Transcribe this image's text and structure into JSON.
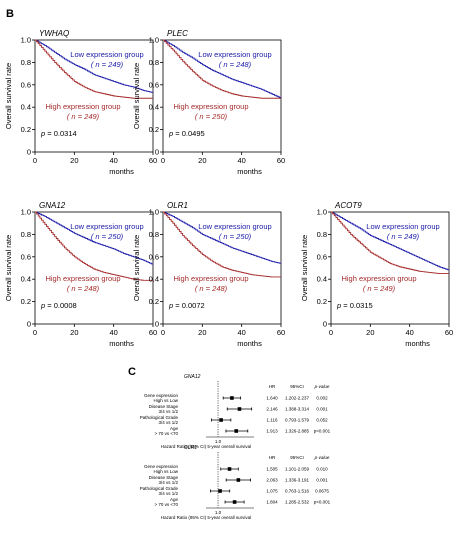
{
  "panels": {
    "b": "B",
    "c": "C"
  },
  "km_common": {
    "ylabel": "Overall survival rate",
    "xlabel": "months",
    "low_label": "Low expression group",
    "high_label": "High expression group",
    "xticks": [
      0,
      20,
      40,
      60
    ],
    "yticks": [
      "0",
      "0.2",
      "0.4",
      "0.6",
      "0.8",
      "1.0"
    ],
    "p_prefix": "p",
    "low_color": "#1a1aa8",
    "high_color": "#a52a2a"
  },
  "chart_data": [
    {
      "type": "line",
      "title": "YWHAQ",
      "xlabel": "months",
      "ylabel": "Overall survival rate",
      "xlim": [
        0,
        60
      ],
      "ylim": [
        0,
        1.0
      ],
      "p_value": "= 0.0314",
      "series": [
        {
          "name": "Low expression group",
          "n": "( n = 249)",
          "x": [
            0,
            5,
            10,
            15,
            20,
            25,
            30,
            35,
            40,
            45,
            50,
            55,
            60
          ],
          "y": [
            1.0,
            0.95,
            0.89,
            0.83,
            0.78,
            0.74,
            0.69,
            0.66,
            0.63,
            0.6,
            0.58,
            0.55,
            0.53
          ]
        },
        {
          "name": "High expression group",
          "n": "( n = 249)",
          "x": [
            0,
            5,
            10,
            15,
            20,
            25,
            30,
            35,
            40,
            45,
            50,
            55,
            60
          ],
          "y": [
            1.0,
            0.9,
            0.8,
            0.71,
            0.63,
            0.58,
            0.54,
            0.52,
            0.5,
            0.49,
            0.48,
            0.48,
            0.48
          ]
        }
      ]
    },
    {
      "type": "line",
      "title": "PLEC",
      "xlabel": "months",
      "ylabel": "Overall survival rate",
      "xlim": [
        0,
        60
      ],
      "ylim": [
        0,
        1.0
      ],
      "p_value": "= 0.0495",
      "series": [
        {
          "name": "Low expression group",
          "n": "( n = 248)",
          "x": [
            0,
            5,
            10,
            15,
            20,
            25,
            30,
            35,
            40,
            45,
            50,
            55,
            60
          ],
          "y": [
            1.0,
            0.95,
            0.89,
            0.84,
            0.78,
            0.73,
            0.69,
            0.65,
            0.62,
            0.59,
            0.56,
            0.52,
            0.48
          ]
        },
        {
          "name": "High expression group",
          "n": "( n = 250)",
          "x": [
            0,
            5,
            10,
            15,
            20,
            25,
            30,
            35,
            40,
            45,
            50,
            55,
            60
          ],
          "y": [
            1.0,
            0.91,
            0.81,
            0.72,
            0.64,
            0.59,
            0.55,
            0.52,
            0.5,
            0.49,
            0.48,
            0.48,
            0.48
          ]
        }
      ]
    },
    {
      "type": "line",
      "title": "GNA12",
      "xlabel": "months",
      "ylabel": "Overall survival rate",
      "xlim": [
        0,
        60
      ],
      "ylim": [
        0,
        1.0
      ],
      "p_value": "= 0.0008",
      "series": [
        {
          "name": "Low expression group",
          "n": "( n = 250)",
          "x": [
            0,
            5,
            10,
            15,
            20,
            25,
            30,
            35,
            40,
            45,
            50,
            55,
            60
          ],
          "y": [
            1.0,
            0.96,
            0.91,
            0.86,
            0.81,
            0.77,
            0.73,
            0.7,
            0.67,
            0.63,
            0.6,
            0.57,
            0.53
          ]
        },
        {
          "name": "High expression group",
          "n": "( n = 248)",
          "x": [
            0,
            5,
            10,
            15,
            20,
            25,
            30,
            35,
            40,
            45,
            50,
            55,
            60
          ],
          "y": [
            1.0,
            0.89,
            0.78,
            0.68,
            0.6,
            0.54,
            0.49,
            0.46,
            0.44,
            0.42,
            0.4,
            0.39,
            0.39
          ]
        }
      ]
    },
    {
      "type": "line",
      "title": "OLR1",
      "xlabel": "months",
      "ylabel": "Overall survival rate",
      "xlim": [
        0,
        60
      ],
      "ylim": [
        0,
        1.0
      ],
      "p_value": "= 0.0072",
      "series": [
        {
          "name": "Low expression group",
          "n": "( n = 250)",
          "x": [
            0,
            5,
            10,
            15,
            20,
            25,
            30,
            35,
            40,
            45,
            50,
            55,
            60
          ],
          "y": [
            1.0,
            0.96,
            0.91,
            0.86,
            0.8,
            0.76,
            0.72,
            0.68,
            0.65,
            0.62,
            0.59,
            0.56,
            0.54
          ]
        },
        {
          "name": "High expression group",
          "n": "( n = 248)",
          "x": [
            0,
            5,
            10,
            15,
            20,
            25,
            30,
            35,
            40,
            45,
            50,
            55,
            60
          ],
          "y": [
            1.0,
            0.9,
            0.79,
            0.7,
            0.62,
            0.56,
            0.51,
            0.48,
            0.46,
            0.44,
            0.43,
            0.42,
            0.42
          ]
        }
      ]
    },
    {
      "type": "line",
      "title": "ACOT9",
      "xlabel": "months",
      "ylabel": "Overall survival rate",
      "xlim": [
        0,
        60
      ],
      "ylim": [
        0,
        1.0
      ],
      "p_value": "= 0.0315",
      "series": [
        {
          "name": "Low expression group",
          "n": "( n = 249)",
          "x": [
            0,
            5,
            10,
            15,
            20,
            25,
            30,
            35,
            40,
            45,
            50,
            55,
            60
          ],
          "y": [
            1.0,
            0.95,
            0.9,
            0.85,
            0.79,
            0.75,
            0.71,
            0.67,
            0.63,
            0.59,
            0.55,
            0.51,
            0.48
          ]
        },
        {
          "name": "High expression group",
          "n": "( n = 249)",
          "x": [
            0,
            5,
            10,
            15,
            20,
            25,
            30,
            35,
            40,
            45,
            50,
            55,
            60
          ],
          "y": [
            1.0,
            0.9,
            0.8,
            0.72,
            0.64,
            0.59,
            0.54,
            0.51,
            0.49,
            0.47,
            0.46,
            0.45,
            0.45
          ]
        }
      ]
    },
    {
      "type": "forest",
      "title": "GNA12",
      "xlabel": "Hazard Ratio (95% CI) 5-year overall survival",
      "ref_label": "1.0",
      "columns": [
        "HR",
        "95%CI",
        "p-value"
      ],
      "rows": [
        {
          "label1": "Gene expression",
          "label2": "High vs Low",
          "hr": 1.64,
          "hr_text": "1.640",
          "lo": 1.202,
          "hi": 2.237,
          "ci_text": "1.202-2.237",
          "p": "0.002"
        },
        {
          "label1": "Disease Stage",
          "label2": "3/4 vs 1/2",
          "hr": 2.146,
          "hr_text": "2.146",
          "lo": 1.388,
          "hi": 3.314,
          "ci_text": "1.388-3.314",
          "p": "0.001"
        },
        {
          "label1": "Pathological Grade",
          "label2": "3/4 vs 1/2",
          "hr": 1.116,
          "hr_text": "1.116",
          "lo": 0.793,
          "hi": 1.579,
          "ci_text": "0.793-1.579",
          "p": "0.052"
        },
        {
          "label1": "Age",
          "label2": "> 70 vs <70",
          "hr": 1.913,
          "hr_text": "1.913",
          "lo": 1.326,
          "hi": 2.885,
          "ci_text": "1.326-2.885",
          "p": "p<0.001"
        }
      ]
    },
    {
      "type": "forest",
      "title": "OLR1",
      "xlabel": "Hazard Ratio (95% CI) 5-year overall survival",
      "ref_label": "1.0",
      "columns": [
        "HR",
        "95%CI",
        "p-value"
      ],
      "rows": [
        {
          "label1": "Gene expression",
          "label2": "High vs Low",
          "hr": 1.505,
          "hr_text": "1.505",
          "lo": 1.101,
          "hi": 2.059,
          "ci_text": "1.101-2.059",
          "p": "0.010"
        },
        {
          "label1": "Disease Stage",
          "label2": "3/4 vs 1/2",
          "hr": 2.063,
          "hr_text": "2.063",
          "lo": 1.336,
          "hi": 3.191,
          "ci_text": "1.336-3.191",
          "p": "0.001"
        },
        {
          "label1": "Pathological Grade",
          "label2": "3/4 vs 1/2",
          "hr": 1.075,
          "hr_text": "1.075",
          "lo": 0.763,
          "hi": 1.516,
          "ci_text": "0.763-1.516",
          "p": "0.0675"
        },
        {
          "label1": "Age",
          "label2": "> 70 vs <70",
          "hr": 1.804,
          "hr_text": "1.804",
          "lo": 1.285,
          "hi": 2.532,
          "ci_text": "1.285-2.532",
          "p": "p<0.001"
        }
      ]
    }
  ]
}
